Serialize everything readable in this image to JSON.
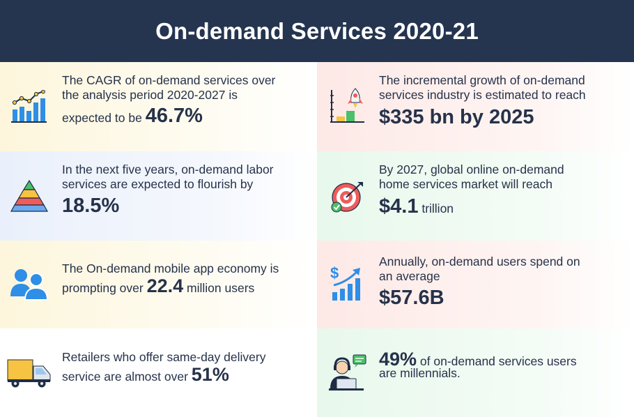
{
  "header": {
    "title": "On-demand Services 2020-21"
  },
  "left": [
    {
      "icon": "growth-chart-icon",
      "line1": "The CAGR of on-demand services over",
      "line2": "the analysis period 2020-2027 is",
      "prefix": "expected to be",
      "value": "46.7%"
    },
    {
      "icon": "pyramid-icon",
      "line1": "In the next five years, on-demand labor",
      "line2": "services are expected to flourish by",
      "value": "18.5%"
    },
    {
      "icon": "users-icon",
      "line1": "The On-demand mobile app economy is",
      "prefix": "prompting over",
      "value": "22.4",
      "suffix": "million users"
    },
    {
      "icon": "delivery-truck-icon",
      "line1": "Retailers who offer same-day delivery",
      "prefix": "service are almost over",
      "value": "51%"
    }
  ],
  "right": [
    {
      "icon": "rocket-growth-icon",
      "line1": "The incremental growth of on-demand",
      "line2": "services industry is estimated to reach",
      "value": "$335 bn by 2025"
    },
    {
      "icon": "target-icon",
      "line1": "By 2027, global online on-demand",
      "line2": "home services market will reach",
      "value": "$4.1",
      "suffix": "trillion"
    },
    {
      "icon": "money-growth-icon",
      "line1": "Annually, on-demand users spend on",
      "line2": "an average",
      "value": "$57.6B"
    },
    {
      "icon": "support-agent-icon",
      "value": "49%",
      "suffix": "of on-demand services users",
      "line2": "are millennials."
    }
  ],
  "colors": {
    "header": "#253550",
    "text": "#26324a",
    "icon_blue": "#2f8ee6",
    "icon_dark": "#1e2d45"
  }
}
